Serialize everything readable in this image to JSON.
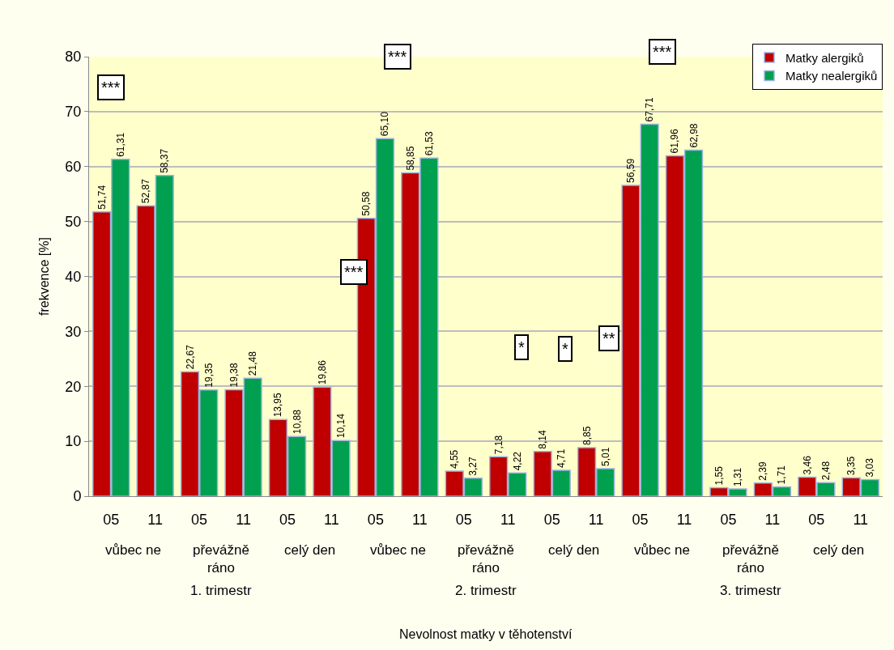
{
  "chart_data": {
    "type": "bar",
    "ylabel": "frekvence [%]",
    "categories": [
      "05",
      "11",
      "05",
      "11",
      "05",
      "11",
      "05",
      "11",
      "05",
      "11",
      "05",
      "11",
      "05",
      "11",
      "05",
      "11",
      "05",
      "11"
    ],
    "series": [
      {
        "name": "Matky alergiků",
        "color": "#c00000",
        "values": [
          51.74,
          52.87,
          22.67,
          19.38,
          13.95,
          19.86,
          50.58,
          58.85,
          4.55,
          7.18,
          8.14,
          8.85,
          56.59,
          61.96,
          1.55,
          2.39,
          3.46,
          3.35
        ],
        "value_labels": [
          "51,74",
          "52,87",
          "22,67",
          "19,38",
          "13,95",
          "19,86",
          "50,58",
          "58,85",
          "4,55",
          "7,18",
          "8,14",
          "8,85",
          "56,59",
          "61,96",
          "1,55",
          "2,39",
          "3,46",
          "3,35"
        ]
      },
      {
        "name": "Matky nealergiků",
        "color": "#00a050",
        "values": [
          61.31,
          58.37,
          19.35,
          21.48,
          10.88,
          10.14,
          65.1,
          61.53,
          3.27,
          4.22,
          4.71,
          5.01,
          67.71,
          62.98,
          1.31,
          1.71,
          2.48,
          3.03
        ],
        "value_labels": [
          "61,31",
          "58,37",
          "19,35",
          "21,48",
          "10,88",
          "10,14",
          "65,10",
          "61,53",
          "3,27",
          "4,22",
          "4,71",
          "5,01",
          "67,71",
          "62,98",
          "1,31",
          "1,71",
          "2,48",
          "3,03"
        ]
      }
    ],
    "annotations": [
      "vůbec ne",
      "převážně\nráno",
      "celý den",
      "vůbec ne",
      "převážně\nráno",
      "celý den",
      "vůbec ne",
      "převážně\nráno",
      "celý den",
      "1. trimestr",
      "2. trimestr",
      "3. trimestr",
      "***",
      "***",
      "***",
      "***",
      "*",
      "*",
      "**",
      "Nevolnost matky v těhotenství"
    ],
    "ylim": [
      0,
      80
    ],
    "yticks": [
      0,
      10,
      20,
      30,
      40,
      50,
      60,
      70,
      80
    ],
    "grid": "y",
    "legend": "top right"
  }
}
